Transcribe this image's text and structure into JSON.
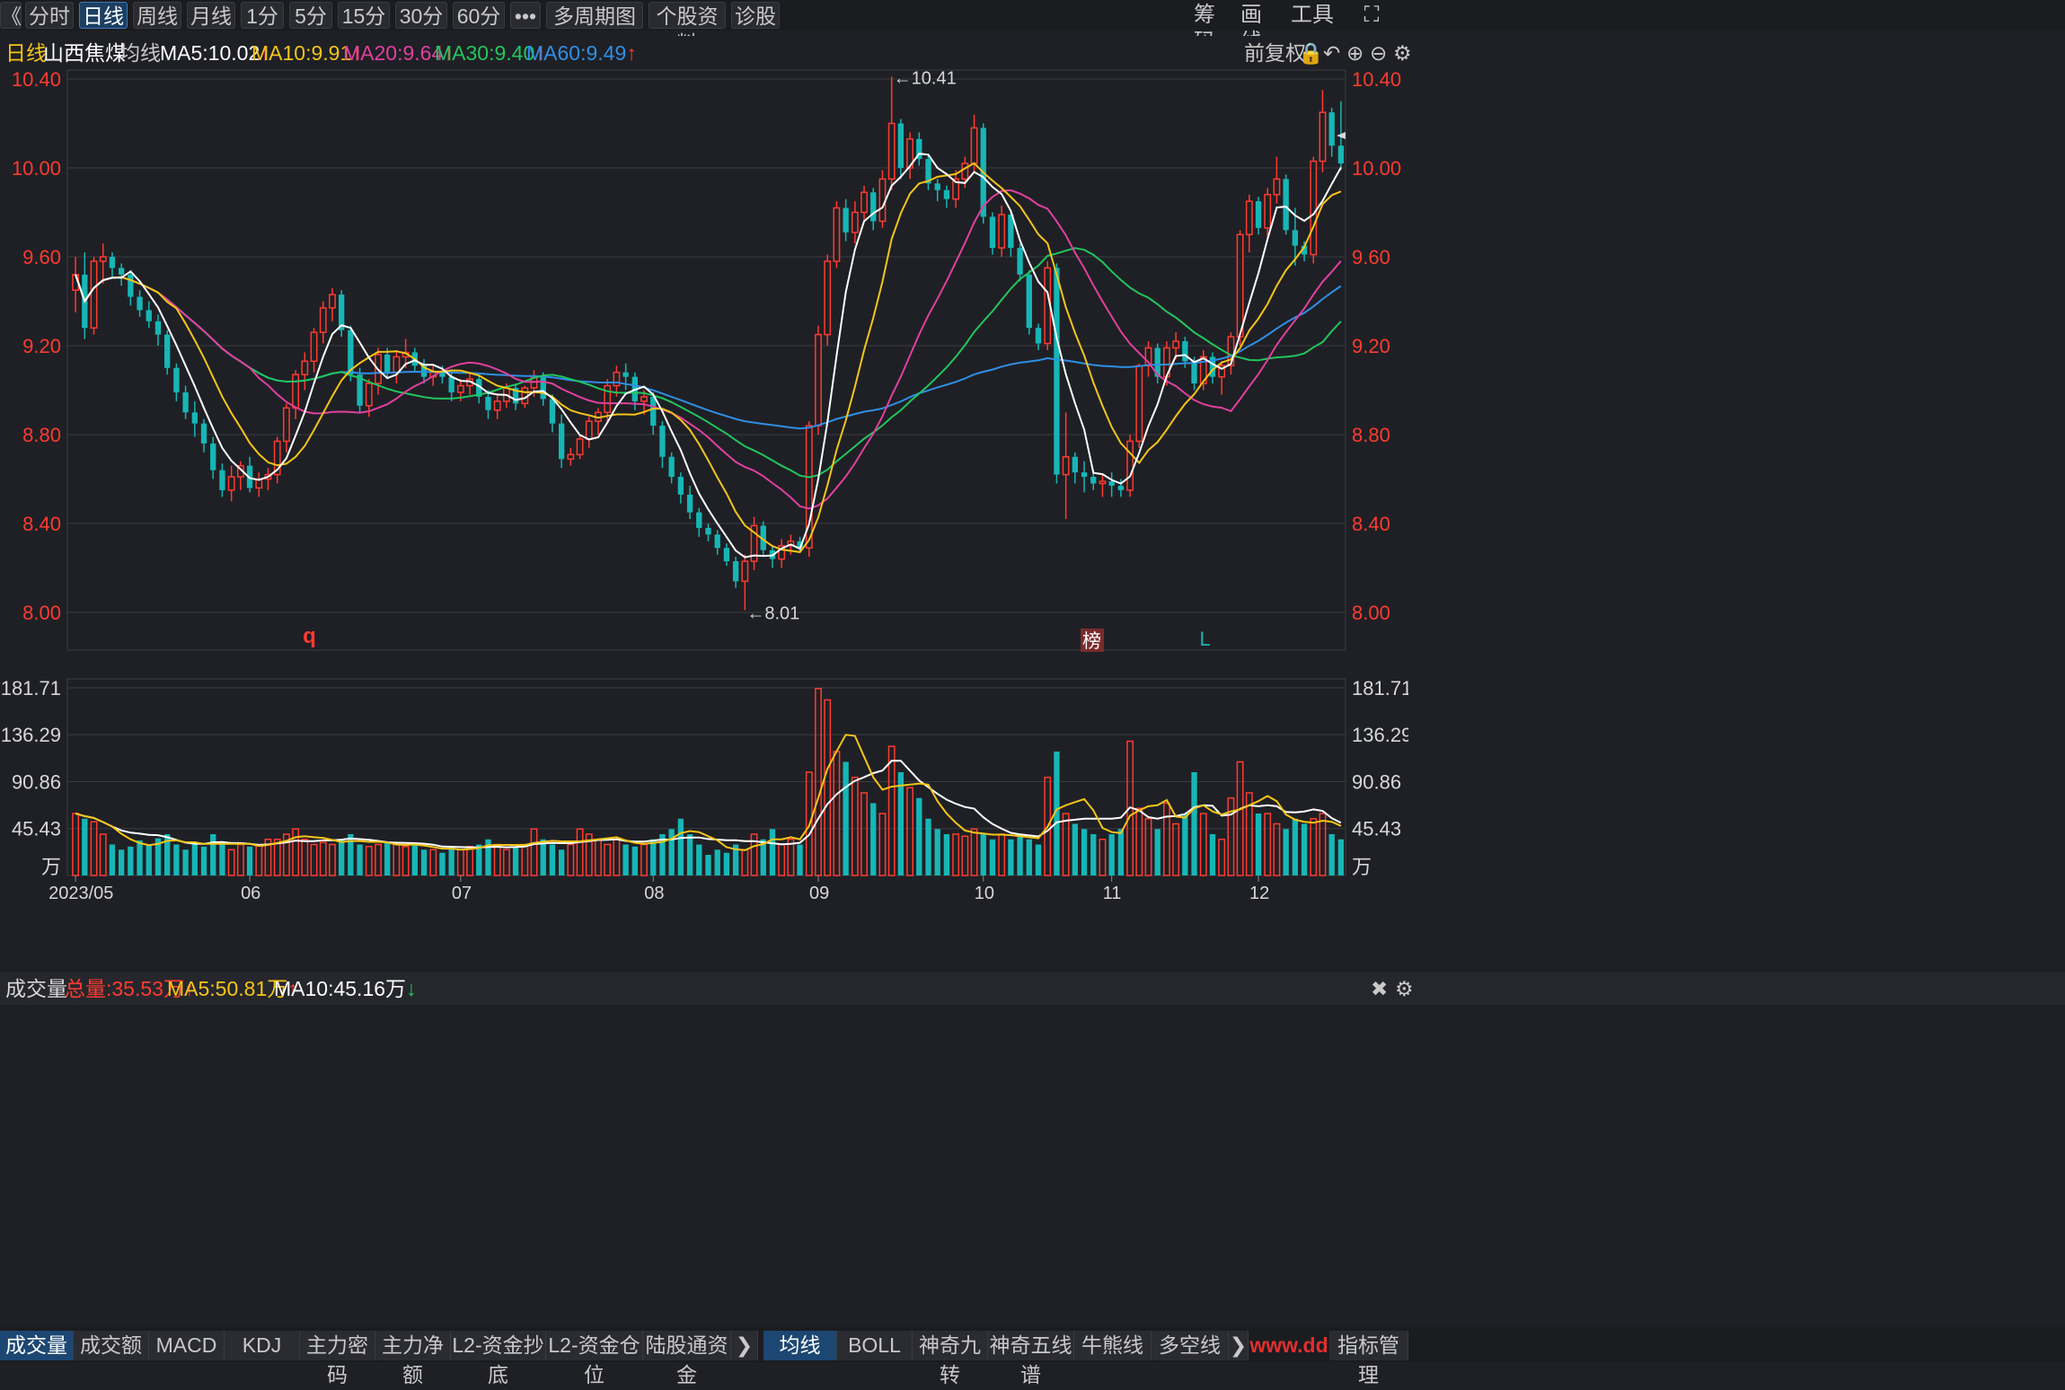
{
  "toolbar": {
    "back": "《",
    "periods": [
      "分时",
      "日线",
      "周线",
      "月线",
      "1分",
      "5分",
      "15分",
      "30分",
      "60分"
    ],
    "active_period": "日线",
    "more": "•••",
    "multi_period": "多周期图",
    "stock_info": "个股资料",
    "diagnose": "诊股",
    "right": [
      "筹码",
      "画线",
      "工具"
    ]
  },
  "info": {
    "period": "日线",
    "name": "山西焦煤",
    "avg_label": "均线",
    "ma5": "MA5:10.02",
    "ma10": "MA10:9.91",
    "ma20": "MA20:9.64",
    "ma30": "MA30:9.40",
    "ma60": "MA60:9.49",
    "adjust": "前复权"
  },
  "colors": {
    "up": "#ff3b30",
    "down": "#17b6b6",
    "ma5": "#ffffff",
    "ma10": "#f5c518",
    "ma20": "#e040a0",
    "ma30": "#22c55e",
    "ma60": "#2f8fe6",
    "grid": "#3a3b42"
  },
  "price_axis": {
    "ticks": [
      "10.40",
      "10.00",
      "9.60",
      "9.20",
      "8.80",
      "8.40",
      "8.00"
    ],
    "values": [
      10.4,
      10.0,
      9.6,
      9.2,
      8.8,
      8.4,
      8.0
    ]
  },
  "annotations": {
    "high": "←10.41",
    "low": "←8.01",
    "mark_q": "q",
    "mark_bang": "榜",
    "mark_l": "L"
  },
  "volume": {
    "label": "成交量",
    "total": "总量:35.53万",
    "ma5": "MA5:50.81万",
    "ma10": "MA10:45.16万",
    "ticks": [
      "181.71",
      "136.29",
      "90.86",
      "45.43"
    ],
    "tick_values": [
      181.71,
      136.29,
      90.86,
      45.43
    ],
    "unit": "万"
  },
  "x_axis": [
    "2023/05",
    "06",
    "07",
    "08",
    "09",
    "10",
    "11",
    "12"
  ],
  "tabs_left": [
    "成交量",
    "成交额",
    "MACD",
    "KDJ",
    "主力密码",
    "主力净额",
    "L2-资金抄底",
    "L2-资金仓位",
    "陆股通资金"
  ],
  "tabs_right": [
    "均线",
    "BOLL",
    "神奇九转",
    "神奇五线谱",
    "牛熊线",
    "多空线",
    "指标管理"
  ],
  "watermark": "www.dd",
  "chart_data": {
    "type": "candlestick",
    "ylim": [
      8.0,
      10.4
    ],
    "vol_ylim": [
      0,
      181.71
    ],
    "x_labels": [
      "2023/05",
      "06",
      "07",
      "08",
      "09",
      "10",
      "11",
      "12"
    ],
    "candles": [
      [
        9.45,
        9.6,
        9.35,
        9.52,
        60
      ],
      [
        9.52,
        9.62,
        9.23,
        9.28,
        55
      ],
      [
        9.28,
        9.6,
        9.25,
        9.58,
        52
      ],
      [
        9.58,
        9.66,
        9.48,
        9.6,
        40
      ],
      [
        9.6,
        9.62,
        9.51,
        9.55,
        30
      ],
      [
        9.55,
        9.57,
        9.47,
        9.52,
        25
      ],
      [
        9.52,
        9.54,
        9.38,
        9.42,
        28
      ],
      [
        9.42,
        9.45,
        9.33,
        9.36,
        34
      ],
      [
        9.36,
        9.4,
        9.28,
        9.31,
        30
      ],
      [
        9.31,
        9.34,
        9.2,
        9.25,
        36
      ],
      [
        9.25,
        9.27,
        9.07,
        9.1,
        40
      ],
      [
        9.1,
        9.12,
        8.95,
        8.99,
        30
      ],
      [
        8.99,
        9.02,
        8.87,
        8.9,
        25
      ],
      [
        8.9,
        8.95,
        8.79,
        8.85,
        30
      ],
      [
        8.85,
        8.87,
        8.72,
        8.76,
        28
      ],
      [
        8.76,
        8.79,
        8.6,
        8.64,
        40
      ],
      [
        8.64,
        8.67,
        8.52,
        8.55,
        30
      ],
      [
        8.55,
        8.66,
        8.5,
        8.61,
        25
      ],
      [
        8.61,
        8.68,
        8.55,
        8.66,
        30
      ],
      [
        8.66,
        8.7,
        8.54,
        8.56,
        28
      ],
      [
        8.56,
        8.63,
        8.52,
        8.6,
        30
      ],
      [
        8.6,
        8.65,
        8.55,
        8.62,
        35
      ],
      [
        8.62,
        8.79,
        8.58,
        8.77,
        35
      ],
      [
        8.77,
        8.94,
        8.72,
        8.92,
        40
      ],
      [
        8.92,
        9.09,
        8.87,
        9.07,
        45
      ],
      [
        9.07,
        9.17,
        9.0,
        9.13,
        35
      ],
      [
        9.13,
        9.28,
        9.08,
        9.26,
        30
      ],
      [
        9.26,
        9.4,
        9.21,
        9.37,
        32
      ],
      [
        9.37,
        9.46,
        9.31,
        9.43,
        30
      ],
      [
        9.43,
        9.45,
        9.24,
        9.27,
        35
      ],
      [
        9.27,
        9.29,
        9.04,
        9.07,
        40
      ],
      [
        9.07,
        9.1,
        8.9,
        8.93,
        30
      ],
      [
        8.93,
        9.05,
        8.88,
        9.03,
        28
      ],
      [
        9.03,
        9.19,
        8.98,
        9.16,
        30
      ],
      [
        9.16,
        9.19,
        9.05,
        9.08,
        32
      ],
      [
        9.08,
        9.18,
        9.03,
        9.15,
        30
      ],
      [
        9.15,
        9.23,
        9.1,
        9.17,
        28
      ],
      [
        9.17,
        9.19,
        9.08,
        9.11,
        30
      ],
      [
        9.11,
        9.14,
        9.03,
        9.06,
        25
      ],
      [
        9.06,
        9.11,
        9.02,
        9.08,
        25
      ],
      [
        9.08,
        9.11,
        9.03,
        9.06,
        22
      ],
      [
        9.06,
        9.08,
        8.95,
        8.99,
        28
      ],
      [
        8.99,
        9.05,
        8.95,
        9.02,
        25
      ],
      [
        9.02,
        9.08,
        8.98,
        9.05,
        28
      ],
      [
        9.05,
        9.07,
        8.94,
        8.97,
        30
      ],
      [
        8.97,
        9.0,
        8.87,
        8.91,
        35
      ],
      [
        8.91,
        8.98,
        8.87,
        8.95,
        30
      ],
      [
        8.95,
        9.03,
        8.92,
        9.01,
        25
      ],
      [
        9.01,
        9.03,
        8.91,
        8.94,
        28
      ],
      [
        8.94,
        9.02,
        8.92,
        9.01,
        30
      ],
      [
        9.01,
        9.09,
        8.97,
        9.06,
        45
      ],
      [
        9.06,
        9.08,
        8.93,
        8.96,
        35
      ],
      [
        8.96,
        8.98,
        8.81,
        8.85,
        30
      ],
      [
        8.85,
        8.89,
        8.65,
        8.69,
        25
      ],
      [
        8.69,
        8.74,
        8.66,
        8.71,
        30
      ],
      [
        8.71,
        8.8,
        8.69,
        8.78,
        45
      ],
      [
        8.78,
        8.88,
        8.74,
        8.86,
        40
      ],
      [
        8.86,
        8.92,
        8.8,
        8.9,
        35
      ],
      [
        8.9,
        9.05,
        8.86,
        9.02,
        30
      ],
      [
        9.02,
        9.11,
        8.97,
        9.08,
        35
      ],
      [
        9.08,
        9.12,
        9.0,
        9.06,
        30
      ],
      [
        9.06,
        9.08,
        8.91,
        8.95,
        28
      ],
      [
        8.95,
        9.0,
        8.89,
        8.97,
        30
      ],
      [
        8.97,
        8.99,
        8.8,
        8.84,
        35
      ],
      [
        8.84,
        8.86,
        8.65,
        8.7,
        40
      ],
      [
        8.7,
        8.72,
        8.58,
        8.61,
        45
      ],
      [
        8.61,
        8.63,
        8.49,
        8.53,
        55
      ],
      [
        8.53,
        8.57,
        8.42,
        8.45,
        40
      ],
      [
        8.45,
        8.47,
        8.34,
        8.38,
        30
      ],
      [
        8.38,
        8.4,
        8.32,
        8.35,
        20
      ],
      [
        8.35,
        8.37,
        8.26,
        8.29,
        25
      ],
      [
        8.29,
        8.31,
        8.21,
        8.23,
        22
      ],
      [
        8.23,
        8.25,
        8.11,
        8.14,
        30
      ],
      [
        8.14,
        8.26,
        8.01,
        8.23,
        25
      ],
      [
        8.23,
        8.43,
        8.19,
        8.39,
        40
      ],
      [
        8.39,
        8.41,
        8.25,
        8.28,
        35
      ],
      [
        8.28,
        8.3,
        8.2,
        8.24,
        45
      ],
      [
        8.24,
        8.33,
        8.2,
        8.3,
        30
      ],
      [
        8.3,
        8.35,
        8.26,
        8.32,
        35
      ],
      [
        8.32,
        8.34,
        8.27,
        8.29,
        30
      ],
      [
        8.29,
        8.86,
        8.25,
        8.84,
        100
      ],
      [
        8.84,
        9.29,
        8.8,
        9.25,
        181
      ],
      [
        9.25,
        9.61,
        9.2,
        9.58,
        170
      ],
      [
        9.58,
        9.85,
        9.55,
        9.82,
        120
      ],
      [
        9.82,
        9.86,
        9.67,
        9.71,
        110
      ],
      [
        9.71,
        9.85,
        9.66,
        9.8,
        95
      ],
      [
        9.8,
        9.92,
        9.76,
        9.89,
        80
      ],
      [
        9.89,
        9.91,
        9.72,
        9.76,
        70
      ],
      [
        9.76,
        9.99,
        9.73,
        9.95,
        60
      ],
      [
        9.95,
        10.41,
        9.9,
        10.2,
        125
      ],
      [
        10.2,
        10.22,
        9.95,
        10.0,
        100
      ],
      [
        10.0,
        10.16,
        9.95,
        10.13,
        85
      ],
      [
        10.13,
        10.16,
        10.01,
        10.04,
        75
      ],
      [
        10.04,
        10.06,
        9.9,
        9.93,
        55
      ],
      [
        9.93,
        9.95,
        9.85,
        9.9,
        45
      ],
      [
        9.9,
        9.92,
        9.82,
        9.86,
        40
      ],
      [
        9.86,
        9.99,
        9.82,
        9.95,
        40
      ],
      [
        9.95,
        10.05,
        9.91,
        10.02,
        38
      ],
      [
        10.02,
        10.24,
        9.98,
        10.18,
        45
      ],
      [
        10.18,
        10.2,
        9.75,
        9.78,
        40
      ],
      [
        9.78,
        9.8,
        9.61,
        9.64,
        35
      ],
      [
        9.64,
        9.83,
        9.6,
        9.79,
        40
      ],
      [
        9.79,
        9.81,
        9.6,
        9.64,
        35
      ],
      [
        9.64,
        9.66,
        9.49,
        9.52,
        40
      ],
      [
        9.52,
        9.54,
        9.25,
        9.28,
        35
      ],
      [
        9.28,
        9.3,
        9.18,
        9.21,
        30
      ],
      [
        9.21,
        9.58,
        9.18,
        9.55,
        95
      ],
      [
        9.55,
        9.57,
        8.58,
        8.62,
        120
      ],
      [
        8.62,
        8.9,
        8.42,
        8.7,
        60
      ],
      [
        8.7,
        8.72,
        8.58,
        8.63,
        50
      ],
      [
        8.63,
        8.68,
        8.54,
        8.61,
        45
      ],
      [
        8.61,
        8.64,
        8.55,
        8.58,
        40
      ],
      [
        8.58,
        8.62,
        8.52,
        8.59,
        35
      ],
      [
        8.59,
        8.63,
        8.52,
        8.57,
        40
      ],
      [
        8.57,
        8.6,
        8.52,
        8.55,
        45
      ],
      [
        8.55,
        8.8,
        8.52,
        8.77,
        130
      ],
      [
        8.77,
        9.12,
        8.74,
        9.11,
        65
      ],
      [
        9.11,
        9.22,
        9.06,
        9.19,
        55
      ],
      [
        9.19,
        9.21,
        9.03,
        9.06,
        45
      ],
      [
        9.06,
        9.22,
        9.02,
        9.19,
        70
      ],
      [
        9.19,
        9.26,
        9.14,
        9.22,
        50
      ],
      [
        9.22,
        9.24,
        9.1,
        9.13,
        60
      ],
      [
        9.13,
        9.15,
        9.0,
        9.03,
        100
      ],
      [
        9.03,
        9.18,
        9.0,
        9.15,
        60
      ],
      [
        9.15,
        9.17,
        9.03,
        9.06,
        40
      ],
      [
        9.06,
        9.13,
        8.98,
        9.11,
        35
      ],
      [
        9.11,
        9.26,
        9.07,
        9.24,
        75
      ],
      [
        9.24,
        9.72,
        9.2,
        9.7,
        110
      ],
      [
        9.7,
        9.88,
        9.62,
        9.85,
        80
      ],
      [
        9.85,
        9.87,
        9.7,
        9.73,
        60
      ],
      [
        9.73,
        9.91,
        9.69,
        9.88,
        60
      ],
      [
        9.88,
        10.05,
        9.84,
        9.95,
        50
      ],
      [
        9.95,
        9.97,
        9.7,
        9.72,
        45
      ],
      [
        9.72,
        9.82,
        9.56,
        9.65,
        55
      ],
      [
        9.65,
        9.67,
        9.58,
        9.61,
        50
      ],
      [
        9.61,
        10.05,
        9.57,
        10.03,
        55
      ],
      [
        10.03,
        10.35,
        9.98,
        10.25,
        60
      ],
      [
        10.25,
        10.27,
        10.05,
        10.1,
        40
      ],
      [
        10.1,
        10.3,
        9.99,
        10.02,
        35
      ]
    ]
  }
}
